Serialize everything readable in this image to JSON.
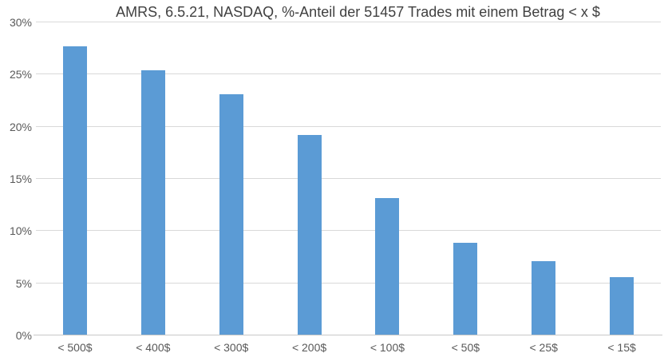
{
  "chart_data": {
    "type": "bar",
    "title": "AMRS, 6.5.21, NASDAQ, %-Anteil der 51457 Trades mit einem Betrag < x $",
    "categories": [
      "< 500$",
      "< 400$",
      "< 300$",
      "< 200$",
      "< 100$",
      "< 50$",
      "< 25$",
      "< 15$"
    ],
    "values": [
      27.7,
      25.4,
      23.1,
      19.2,
      13.2,
      8.9,
      7.1,
      5.6
    ],
    "value_unit": "%",
    "xlabel": "",
    "ylabel": "",
    "ylim": [
      0,
      30
    ],
    "ytick_step": 5,
    "ytick_labels": [
      "0%",
      "5%",
      "10%",
      "15%",
      "20%",
      "25%",
      "30%"
    ],
    "grid": "horizontal",
    "legend_position": "none",
    "colors": {
      "bar": "#5b9bd5",
      "gridline": "#d9d9d9",
      "axis_line": "#c8c8c8",
      "title_text": "#404040",
      "tick_text": "#595959",
      "background": "#ffffff"
    }
  }
}
